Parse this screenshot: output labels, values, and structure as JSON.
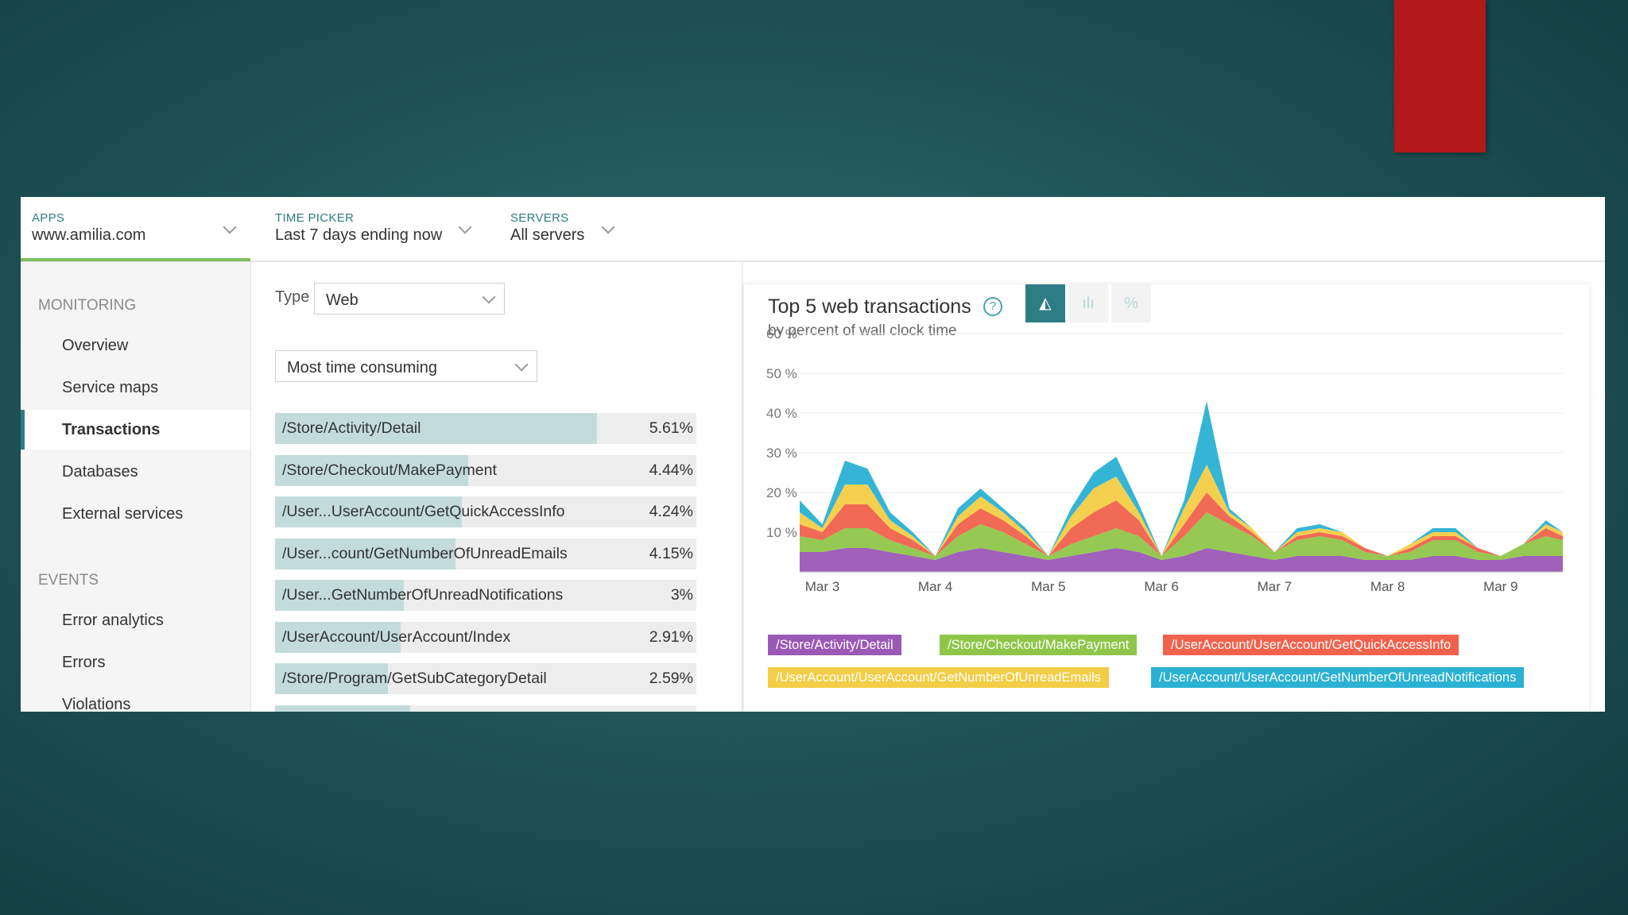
{
  "topbar": {
    "apps": {
      "label": "APPS",
      "value": "www.amilia.com"
    },
    "time_picker": {
      "label": "TIME PICKER",
      "value": "Last 7 days ending now"
    },
    "servers": {
      "label": "SERVERS",
      "value": "All servers"
    }
  },
  "sidebar": {
    "monitoring_label": "MONITORING",
    "monitoring_items": [
      "Overview",
      "Service maps",
      "Transactions",
      "Databases",
      "External services"
    ],
    "active_item": "Transactions",
    "events_label": "EVENTS",
    "events_items": [
      "Error analytics",
      "Errors",
      "Violations"
    ]
  },
  "filters": {
    "type_label": "Type",
    "type_value": "Web",
    "sort_value": "Most time consuming"
  },
  "transactions": [
    {
      "name": "/Store/Activity/Detail",
      "pct": "5.61%",
      "share": 1.0
    },
    {
      "name": "/Store/Checkout/MakePayment",
      "pct": "4.44%",
      "share": 0.6
    },
    {
      "name": "/User...UserAccount/GetQuickAccessInfo",
      "pct": "4.24%",
      "share": 0.58
    },
    {
      "name": "/User...count/GetNumberOfUnreadEmails",
      "pct": "4.15%",
      "share": 0.56
    },
    {
      "name": "/User...GetNumberOfUnreadNotifications",
      "pct": "3%",
      "share": 0.4
    },
    {
      "name": "/UserAccount/UserAccount/Index",
      "pct": "2.91%",
      "share": 0.39
    },
    {
      "name": "/Store/Program/GetSubCategoryDetail",
      "pct": "2.59%",
      "share": 0.35
    }
  ],
  "chart_panel": {
    "title": "Top 5 web transactions",
    "subtitle": "by percent of wall clock time",
    "help_icon": "help-circle-icon",
    "view_buttons": [
      {
        "icon": "area-chart-icon",
        "glyph": "◭",
        "active": true
      },
      {
        "icon": "bar-chart-icon",
        "glyph": "ılı",
        "active": false
      },
      {
        "icon": "percent-icon",
        "glyph": "%",
        "active": false
      }
    ]
  },
  "colors": {
    "accent": "#2d7d84",
    "purple": "#9b59b6",
    "green": "#8fc64a",
    "red": "#f0624d",
    "yellow": "#f4cd46",
    "blue": "#2ab1d4"
  },
  "chart_data": {
    "type": "area",
    "stacked": true,
    "title": "Top 5 web transactions",
    "subtitle": "by percent of wall clock time",
    "ylim": [
      0,
      60
    ],
    "y_ticks": [
      "60 %",
      "50 %",
      "40 %",
      "30 %",
      "20 %",
      "10 %"
    ],
    "y_tick_values": [
      60,
      50,
      40,
      30,
      20,
      10
    ],
    "x_ticks": [
      "Mar 3",
      "Mar 4",
      "Mar 5",
      "Mar 6",
      "Mar 7",
      "Mar 8",
      "Mar 9"
    ],
    "x_tick_values": [
      3,
      4,
      5,
      6,
      7,
      8,
      9
    ],
    "xlim": [
      2.8,
      9.55
    ],
    "x": [
      2.8,
      3.0,
      3.2,
      3.4,
      3.6,
      3.8,
      4.0,
      4.2,
      4.4,
      4.6,
      4.8,
      5.0,
      5.2,
      5.4,
      5.6,
      5.8,
      6.0,
      6.2,
      6.4,
      6.6,
      6.8,
      7.0,
      7.2,
      7.4,
      7.6,
      7.8,
      8.0,
      8.2,
      8.4,
      8.6,
      8.8,
      9.0,
      9.2,
      9.4,
      9.55
    ],
    "series": [
      {
        "name": "/Store/Activity/Detail",
        "color": "#9b59b6",
        "values": [
          5,
          5,
          6,
          6,
          5,
          4,
          3,
          5,
          6,
          5,
          4,
          3,
          4,
          5,
          6,
          5,
          3,
          4,
          6,
          5,
          4,
          3,
          4,
          4,
          4,
          3,
          3,
          3,
          4,
          4,
          3,
          3,
          4,
          4,
          4
        ]
      },
      {
        "name": "/Store/Checkout/MakePayment",
        "color": "#8fc64a",
        "values": [
          4,
          3,
          5,
          5,
          3,
          2,
          1,
          4,
          6,
          5,
          3,
          1,
          3,
          4,
          5,
          4,
          1,
          5,
          9,
          7,
          5,
          2,
          4,
          5,
          4,
          2,
          1,
          2,
          4,
          4,
          2,
          1,
          3,
          5,
          4
        ]
      },
      {
        "name": "/UserAccount/UserAccount/GetQuickAccessInfo",
        "color": "#f0624d",
        "values": [
          3,
          2,
          6,
          6,
          3,
          2,
          0,
          3,
          4,
          3,
          2,
          0,
          4,
          6,
          7,
          4,
          0,
          3,
          5,
          2,
          1,
          0,
          1,
          1,
          1,
          1,
          0,
          1,
          1,
          1,
          1,
          0,
          0,
          2,
          1
        ]
      },
      {
        "name": "/UserAccount/UserAccount/GetNumberOfUnreadEmails",
        "color": "#f4cd46",
        "values": [
          3,
          1,
          5,
          5,
          2,
          1,
          0,
          2,
          3,
          2,
          1,
          0,
          3,
          6,
          6,
          2,
          0,
          4,
          7,
          1,
          1,
          0,
          1,
          1,
          1,
          0,
          0,
          1,
          1,
          1,
          0,
          0,
          0,
          1,
          1
        ]
      },
      {
        "name": "/UserAccount/UserAccount/GetNumberOfUnreadNotifications",
        "color": "#2ab1d4",
        "values": [
          3,
          1,
          6,
          4,
          2,
          1,
          0,
          2,
          2,
          1,
          1,
          0,
          2,
          4,
          5,
          2,
          0,
          2,
          16,
          1,
          0,
          0,
          1,
          1,
          0,
          0,
          0,
          0,
          1,
          1,
          0,
          0,
          0,
          1,
          0
        ]
      }
    ],
    "legend": [
      "/Store/Activity/Detail",
      "/Store/Checkout/MakePayment",
      "/UserAccount/UserAccount/GetQuickAccessInfo",
      "/UserAccount/UserAccount/GetNumberOfUnreadEmails",
      "/UserAccount/UserAccount/GetNumberOfUnreadNotifications"
    ],
    "legend_position": "bottom"
  }
}
